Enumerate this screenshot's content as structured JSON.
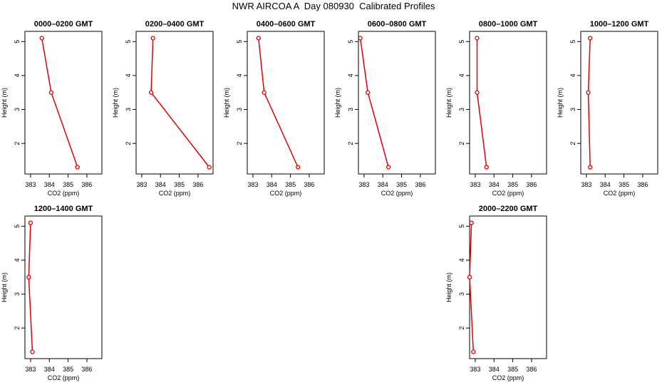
{
  "title": "NWR AIRCOA A  Day 080930  Calibrated Profiles",
  "colors": {
    "line": "#e00000",
    "marker": "#e00000",
    "axis": "#000000"
  },
  "chart_data": [
    {
      "type": "line",
      "title": "0000–0200 GMT",
      "xlabel": "CO2 (ppm)",
      "ylabel": "Height (m)",
      "xticks": [
        "383",
        "384",
        "385",
        "386"
      ],
      "yticks": [
        "2",
        "3",
        "4",
        "5"
      ],
      "xlim": [
        382.7,
        386.8
      ],
      "ylim": [
        1.1,
        5.3
      ],
      "x": [
        383.6,
        384.1,
        385.5
      ],
      "y": [
        5.1,
        3.5,
        1.3
      ]
    },
    {
      "type": "line",
      "title": "0200–0400 GMT",
      "xlabel": "CO2 (ppm)",
      "ylabel": "Height (m)",
      "xticks": [
        "383",
        "384",
        "385",
        "386"
      ],
      "yticks": [
        "2",
        "3",
        "4",
        "5"
      ],
      "xlim": [
        382.7,
        386.8
      ],
      "ylim": [
        1.1,
        5.3
      ],
      "x": [
        383.6,
        383.5,
        386.6
      ],
      "y": [
        5.1,
        3.5,
        1.3
      ]
    },
    {
      "type": "line",
      "title": "0400–0600 GMT",
      "xlabel": "CO2 (ppm)",
      "ylabel": "Height (m)",
      "xticks": [
        "383",
        "384",
        "385",
        "386"
      ],
      "yticks": [
        "2",
        "3",
        "4",
        "5"
      ],
      "xlim": [
        382.7,
        386.8
      ],
      "ylim": [
        1.1,
        5.3
      ],
      "x": [
        383.3,
        383.6,
        385.4
      ],
      "y": [
        5.1,
        3.5,
        1.3
      ]
    },
    {
      "type": "line",
      "title": "0600–0800 GMT",
      "xlabel": "CO2 (ppm)",
      "ylabel": "Height (m)",
      "xticks": [
        "383",
        "384",
        "385",
        "386"
      ],
      "yticks": [
        "2",
        "3",
        "4",
        "5"
      ],
      "xlim": [
        382.7,
        386.8
      ],
      "ylim": [
        1.1,
        5.3
      ],
      "x": [
        382.8,
        383.2,
        384.3
      ],
      "y": [
        5.1,
        3.5,
        1.3
      ]
    },
    {
      "type": "line",
      "title": "0800–1000 GMT",
      "xlabel": "CO2 (ppm)",
      "ylabel": "Height (m)",
      "xticks": [
        "383",
        "384",
        "385",
        "386"
      ],
      "yticks": [
        "2",
        "3",
        "4",
        "5"
      ],
      "xlim": [
        382.7,
        386.8
      ],
      "ylim": [
        1.1,
        5.3
      ],
      "x": [
        383.1,
        383.1,
        383.6
      ],
      "y": [
        5.1,
        3.5,
        1.3
      ]
    },
    {
      "type": "line",
      "title": "1000–1200 GMT",
      "xlabel": "CO2 (ppm)",
      "ylabel": "Height (m)",
      "xticks": [
        "383",
        "384",
        "385",
        "386"
      ],
      "yticks": [
        "2",
        "3",
        "4",
        "5"
      ],
      "xlim": [
        382.7,
        386.8
      ],
      "ylim": [
        1.1,
        5.3
      ],
      "x": [
        383.2,
        383.1,
        383.2
      ],
      "y": [
        5.1,
        3.5,
        1.3
      ]
    },
    {
      "type": "line",
      "title": "1200–1400 GMT",
      "xlabel": "CO2 (ppm)",
      "ylabel": "Height (m)",
      "xticks": [
        "383",
        "384",
        "385",
        "386"
      ],
      "yticks": [
        "2",
        "3",
        "4",
        "5"
      ],
      "xlim": [
        382.7,
        386.8
      ],
      "ylim": [
        1.1,
        5.3
      ],
      "x": [
        383.0,
        382.9,
        383.1
      ],
      "y": [
        5.1,
        3.5,
        1.3
      ]
    },
    {
      "type": "line",
      "title": "2000–2200 GMT",
      "xlabel": "CO2 (ppm)",
      "ylabel": "Height (m)",
      "xticks": [
        "383",
        "384",
        "385",
        "386"
      ],
      "yticks": [
        "2",
        "3",
        "4",
        "5"
      ],
      "xlim": [
        382.7,
        386.8
      ],
      "ylim": [
        1.1,
        5.3
      ],
      "x": [
        382.8,
        382.7,
        382.9
      ],
      "y": [
        5.1,
        3.5,
        1.3
      ]
    }
  ]
}
